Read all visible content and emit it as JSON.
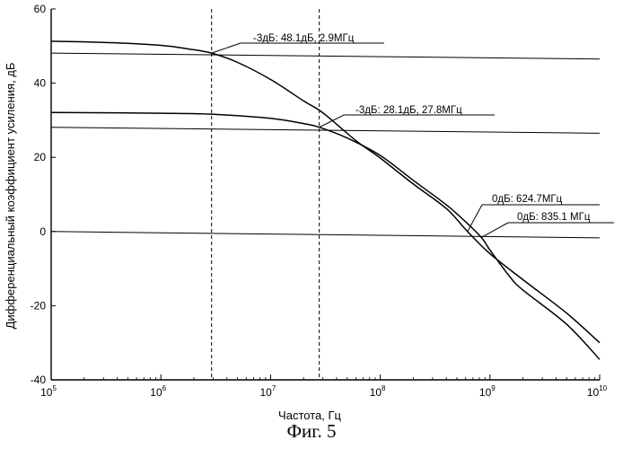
{
  "chart_data": {
    "type": "line",
    "caption": "Фиг. 5",
    "xlabel": "Частота, Гц",
    "ylabel": "Дифференциальный коэффициент усиления, дБ",
    "x_scale": "log",
    "xlim": [
      100000,
      10000000000
    ],
    "ylim": [
      -40,
      60
    ],
    "x_ticks": [
      {
        "base": "10",
        "exp": "5",
        "value": 100000
      },
      {
        "base": "10",
        "exp": "6",
        "value": 1000000
      },
      {
        "base": "10",
        "exp": "7",
        "value": 10000000
      },
      {
        "base": "10",
        "exp": "8",
        "value": 100000000
      },
      {
        "base": "10",
        "exp": "9",
        "value": 1000000000
      },
      {
        "base": "10",
        "exp": "10",
        "value": 10000000000
      }
    ],
    "y_ticks": [
      "60",
      "40",
      "20",
      "0",
      "-20",
      "-40"
    ],
    "grid": false,
    "series": [
      {
        "points": [
          [
            100000,
            51.3
          ],
          [
            300000,
            51.0
          ],
          [
            1000000,
            50.2
          ],
          [
            1800000,
            49.2
          ],
          [
            2900000,
            48.1
          ],
          [
            5000000,
            45.6
          ],
          [
            10000000,
            41.0
          ],
          [
            20000000,
            35.2
          ],
          [
            30000000,
            32.0
          ],
          [
            60000000,
            24.5
          ],
          [
            100000000,
            19.8
          ],
          [
            200000000,
            12.8
          ],
          [
            400000000,
            6.2
          ],
          [
            624700000,
            0.0
          ],
          [
            1000000000,
            -6.0
          ],
          [
            2000000000,
            -13.0
          ],
          [
            5000000000,
            -22.0
          ],
          [
            10000000000,
            -30.0
          ]
        ]
      },
      {
        "points": [
          [
            100000,
            32.1
          ],
          [
            1000000,
            31.9
          ],
          [
            3000000,
            31.6
          ],
          [
            10000000,
            30.5
          ],
          [
            20000000,
            29.1
          ],
          [
            27800000,
            28.1
          ],
          [
            50000000,
            25.2
          ],
          [
            100000000,
            20.5
          ],
          [
            200000000,
            13.8
          ],
          [
            400000000,
            7.2
          ],
          [
            600000000,
            2.6
          ],
          [
            835100000,
            -1.6
          ],
          [
            1000000000,
            -5.0
          ],
          [
            1500000000,
            -12.0
          ],
          [
            2000000000,
            -15.8
          ],
          [
            5000000000,
            -25.0
          ],
          [
            10000000000,
            -34.5
          ]
        ]
      }
    ],
    "reference_lines": [
      {
        "from": [
          100000,
          48.1
        ],
        "to": [
          10000000000,
          46.5
        ]
      },
      {
        "from": [
          100000,
          28.1
        ],
        "to": [
          10000000000,
          26.5
        ]
      },
      {
        "from": [
          100000,
          0.0
        ],
        "to": [
          10000000000,
          -1.7
        ]
      }
    ],
    "vertical_markers": [
      2900000,
      27800000
    ],
    "annotations": [
      {
        "text": "-3дБ: 48.1дБ, 2.9МГц",
        "point": [
          2900000,
          48.1
        ]
      },
      {
        "text": "-3дБ: 28.1дБ, 27.8МГц",
        "point": [
          27800000,
          28.1
        ]
      },
      {
        "text": "0дБ: 624.7МГц",
        "point": [
          624700000,
          0.0
        ]
      },
      {
        "text": "0дБ: 835.1 МГц",
        "point": [
          835100000,
          -1.6
        ]
      }
    ]
  }
}
